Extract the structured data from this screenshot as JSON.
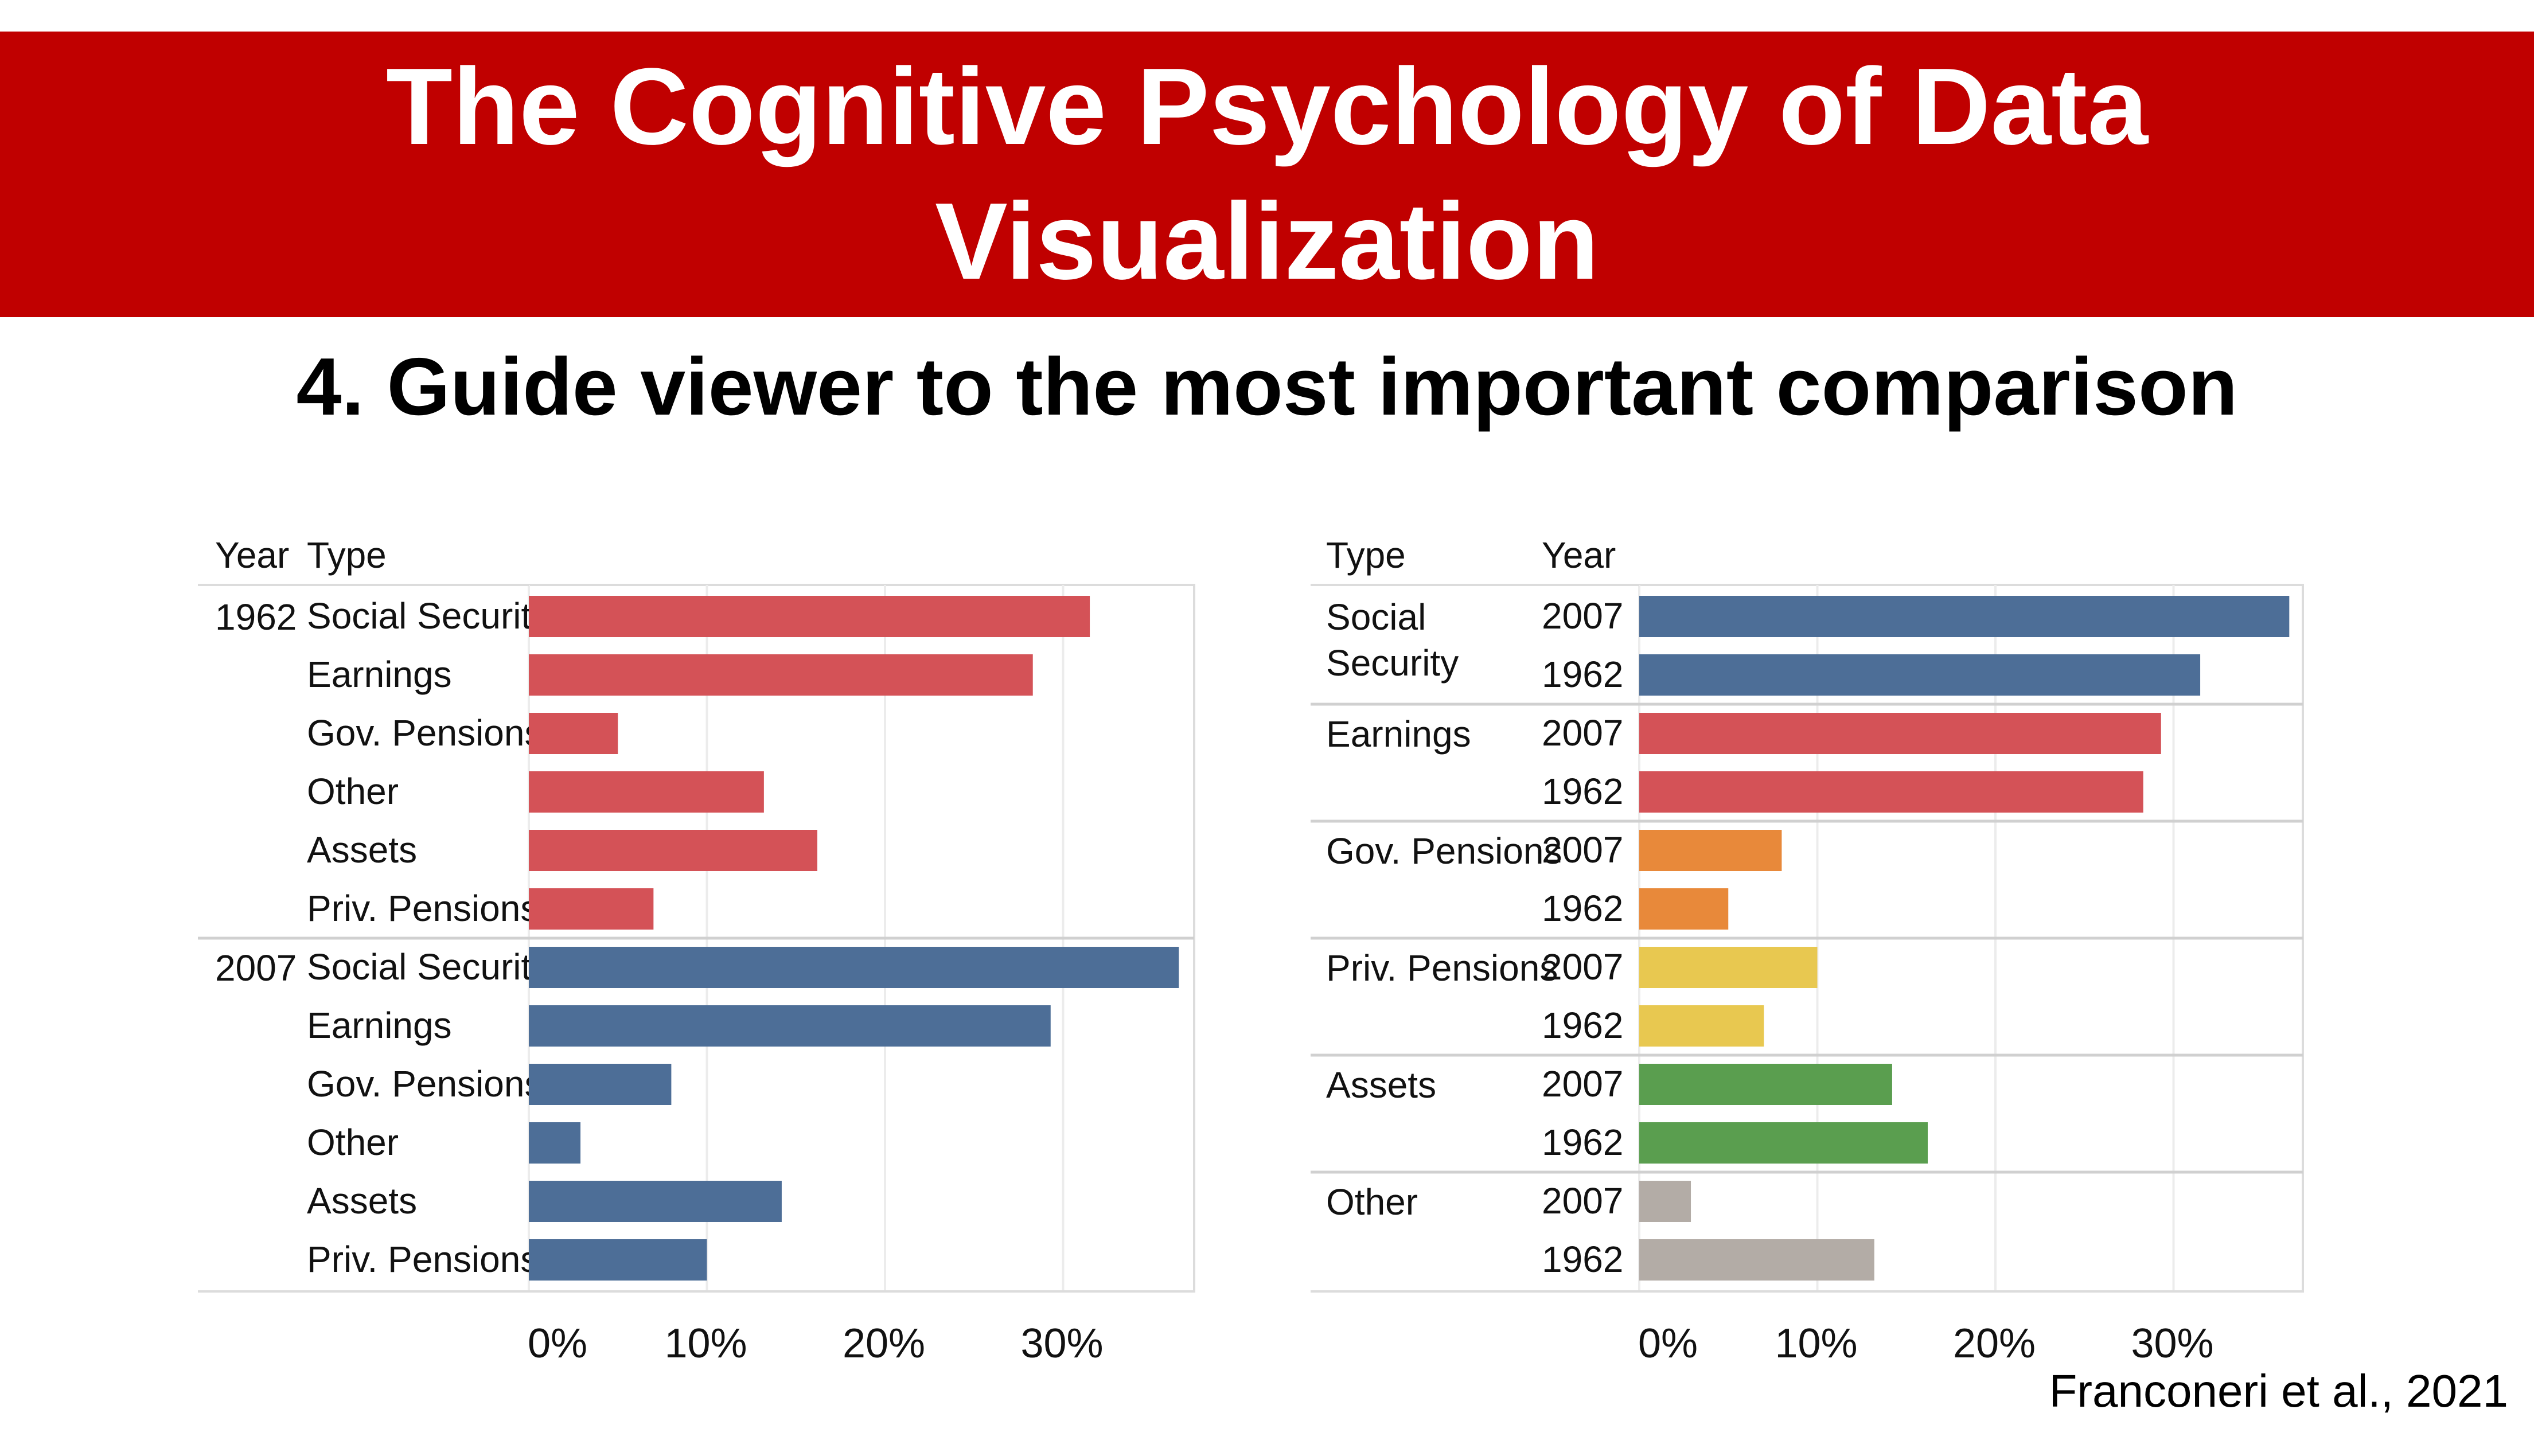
{
  "header": {
    "title": "The Cognitive Psychology of Data Visualization"
  },
  "subtitle": "4. Guide viewer to the most important comparison",
  "citation": "Franconeri et al., 2021",
  "colors": {
    "banner": "#c00000",
    "red": "#d45257",
    "blue": "#4d6e97",
    "orange": "#e8893a",
    "yellow": "#e8c850",
    "green": "#5a9e4f",
    "gray": "#b3aca6"
  },
  "chart_data": [
    {
      "type": "bar",
      "orientation": "horizontal",
      "headers": [
        "Year",
        "Type"
      ],
      "groups": [
        {
          "label": "1962",
          "color": "#d45257",
          "bars": [
            {
              "label": "Social Security",
              "value": 31.5
            },
            {
              "label": "Earnings",
              "value": 28.3
            },
            {
              "label": "Gov. Pensions",
              "value": 5
            },
            {
              "label": "Other",
              "value": 13.2
            },
            {
              "label": "Assets",
              "value": 16.2
            },
            {
              "label": "Priv. Pensions",
              "value": 7
            }
          ]
        },
        {
          "label": "2007",
          "color": "#4d6e97",
          "bars": [
            {
              "label": "Social Security",
              "value": 36.5
            },
            {
              "label": "Earnings",
              "value": 29.3
            },
            {
              "label": "Gov. Pensions",
              "value": 8
            },
            {
              "label": "Other",
              "value": 2.9
            },
            {
              "label": "Assets",
              "value": 14.2
            },
            {
              "label": "Priv. Pensions",
              "value": 10
            }
          ]
        }
      ],
      "xticks": [
        "0%",
        "10%",
        "20%",
        "30%"
      ],
      "xlim": [
        0,
        38
      ],
      "grid": true
    },
    {
      "type": "bar",
      "orientation": "horizontal",
      "headers": [
        "Type",
        "Year"
      ],
      "groups": [
        {
          "label": "Social Security",
          "color": "#4d6e97",
          "bars": [
            {
              "label": "2007",
              "value": 36.5
            },
            {
              "label": "1962",
              "value": 31.5
            }
          ]
        },
        {
          "label": "Earnings",
          "color": "#d45257",
          "bars": [
            {
              "label": "2007",
              "value": 29.3
            },
            {
              "label": "1962",
              "value": 28.3
            }
          ]
        },
        {
          "label": "Gov. Pensions",
          "color": "#e8893a",
          "bars": [
            {
              "label": "2007",
              "value": 8
            },
            {
              "label": "1962",
              "value": 5
            }
          ]
        },
        {
          "label": "Priv. Pensions",
          "color": "#e8c850",
          "bars": [
            {
              "label": "2007",
              "value": 10
            },
            {
              "label": "1962",
              "value": 7
            }
          ]
        },
        {
          "label": "Assets",
          "color": "#5a9e4f",
          "bars": [
            {
              "label": "2007",
              "value": 14.2
            },
            {
              "label": "1962",
              "value": 16.2
            }
          ]
        },
        {
          "label": "Other",
          "color": "#b3aca6",
          "bars": [
            {
              "label": "2007",
              "value": 2.9
            },
            {
              "label": "1962",
              "value": 13.2
            }
          ]
        }
      ],
      "xticks": [
        "0%",
        "10%",
        "20%",
        "30%"
      ],
      "xlim": [
        0,
        38
      ],
      "grid": true
    }
  ]
}
